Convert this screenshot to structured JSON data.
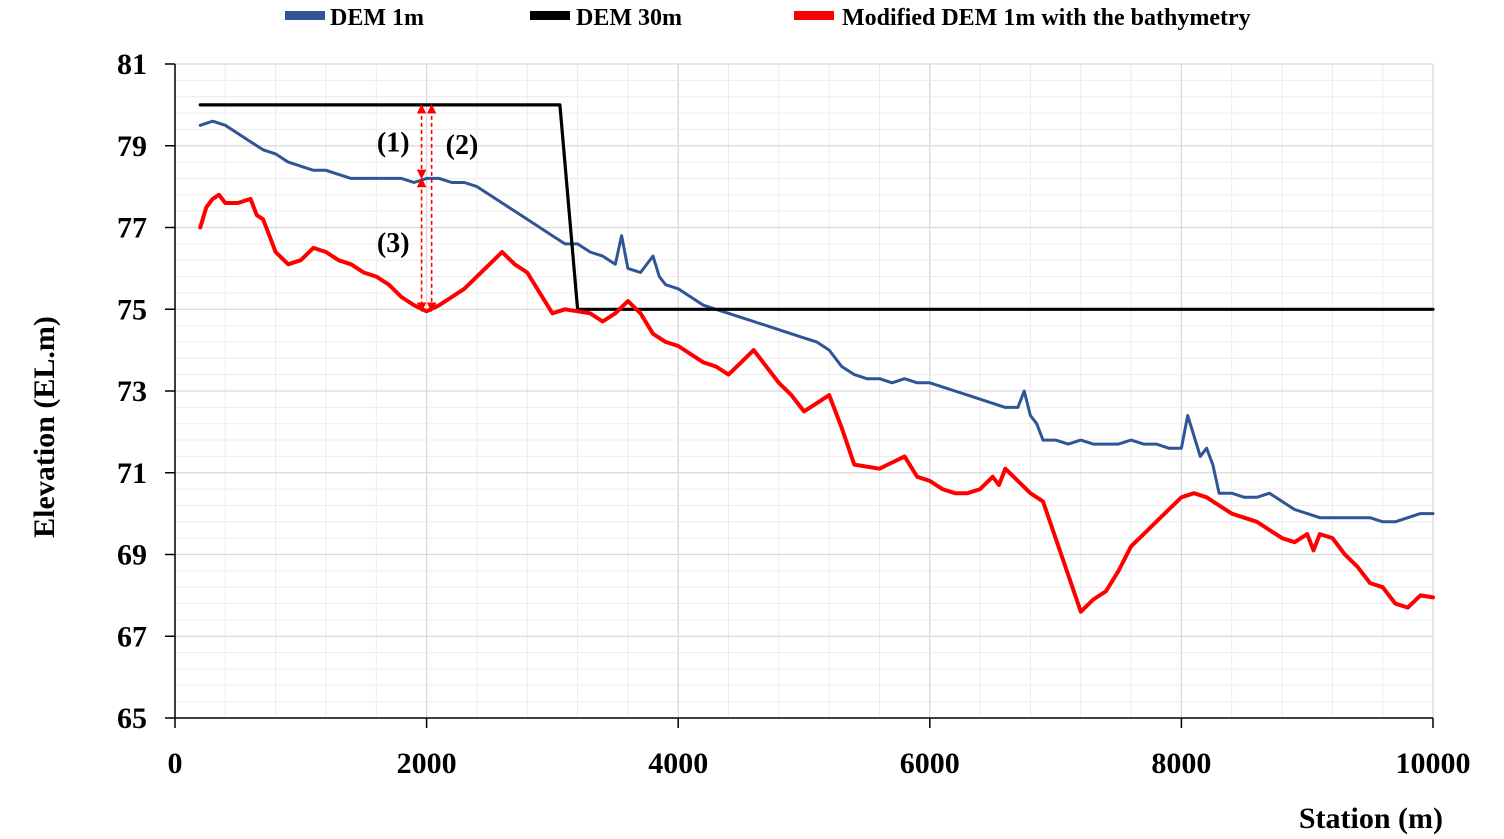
{
  "chart_data": {
    "type": "line",
    "title": "",
    "xlabel": "Station (m)",
    "ylabel": "Elevation (EL.m)",
    "xlim": [
      0,
      10000
    ],
    "ylim": [
      65,
      81
    ],
    "xticks": [
      0,
      2000,
      4000,
      6000,
      8000,
      10000
    ],
    "yticks": [
      65,
      67,
      69,
      71,
      73,
      75,
      77,
      79,
      81
    ],
    "grid": "major and minor gridlines",
    "legend_position": "top",
    "series": [
      {
        "name": "DEM 1m",
        "color": "#2F5597",
        "x": [
          200,
          300,
          400,
          500,
          600,
          700,
          800,
          900,
          1000,
          1100,
          1200,
          1300,
          1400,
          1500,
          1600,
          1700,
          1800,
          1900,
          2000,
          2100,
          2200,
          2300,
          2400,
          2500,
          2600,
          2700,
          2800,
          2900,
          3000,
          3100,
          3200,
          3300,
          3400,
          3500,
          3550,
          3600,
          3700,
          3800,
          3850,
          3900,
          4000,
          4100,
          4200,
          4300,
          4400,
          4500,
          4600,
          4700,
          4800,
          4900,
          5000,
          5100,
          5200,
          5300,
          5400,
          5500,
          5600,
          5700,
          5800,
          5900,
          6000,
          6100,
          6200,
          6300,
          6400,
          6500,
          6600,
          6700,
          6750,
          6800,
          6850,
          6900,
          7000,
          7100,
          7200,
          7300,
          7400,
          7500,
          7600,
          7700,
          7800,
          7900,
          8000,
          8050,
          8100,
          8150,
          8200,
          8250,
          8300,
          8350,
          8400,
          8500,
          8600,
          8700,
          8800,
          8900,
          9000,
          9100,
          9200,
          9300,
          9400,
          9500,
          9600,
          9700,
          9800,
          9900,
          10000
        ],
        "y": [
          79.5,
          79.6,
          79.5,
          79.3,
          79.1,
          78.9,
          78.8,
          78.6,
          78.5,
          78.4,
          78.4,
          78.3,
          78.2,
          78.2,
          78.2,
          78.2,
          78.2,
          78.1,
          78.2,
          78.2,
          78.1,
          78.1,
          78.0,
          77.8,
          77.6,
          77.4,
          77.2,
          77.0,
          76.8,
          76.6,
          76.6,
          76.4,
          76.3,
          76.1,
          76.8,
          76.0,
          75.9,
          76.3,
          75.8,
          75.6,
          75.5,
          75.3,
          75.1,
          75.0,
          74.9,
          74.8,
          74.7,
          74.6,
          74.5,
          74.4,
          74.3,
          74.2,
          74.0,
          73.6,
          73.4,
          73.3,
          73.3,
          73.2,
          73.3,
          73.2,
          73.2,
          73.1,
          73.0,
          72.9,
          72.8,
          72.7,
          72.6,
          72.6,
          73.0,
          72.4,
          72.2,
          71.8,
          71.8,
          71.7,
          71.8,
          71.7,
          71.7,
          71.7,
          71.8,
          71.7,
          71.7,
          71.6,
          71.6,
          72.4,
          71.9,
          71.4,
          71.6,
          71.2,
          70.5,
          70.5,
          70.5,
          70.4,
          70.4,
          70.5,
          70.3,
          70.1,
          70.0,
          69.9,
          69.9,
          69.9,
          69.9,
          69.9,
          69.8,
          69.8,
          69.9,
          70.0,
          70.0
        ]
      },
      {
        "name": "DEM 30m",
        "color": "#000000",
        "x": [
          200,
          3060,
          3200,
          10000
        ],
        "y": [
          80,
          80,
          75,
          75
        ]
      },
      {
        "name": "Modified DEM 1m with the bathymetry",
        "color": "#FF0000",
        "x": [
          200,
          250,
          300,
          350,
          400,
          500,
          600,
          650,
          700,
          750,
          800,
          900,
          1000,
          1100,
          1200,
          1300,
          1400,
          1500,
          1600,
          1700,
          1800,
          1900,
          2000,
          2100,
          2200,
          2300,
          2400,
          2500,
          2600,
          2700,
          2800,
          2900,
          3000,
          3100,
          3200,
          3300,
          3400,
          3500,
          3600,
          3700,
          3800,
          3900,
          4000,
          4100,
          4200,
          4300,
          4400,
          4500,
          4600,
          4700,
          4800,
          4900,
          5000,
          5100,
          5200,
          5300,
          5400,
          5600,
          5800,
          5900,
          6000,
          6100,
          6200,
          6300,
          6400,
          6500,
          6550,
          6600,
          6700,
          6800,
          6900,
          7000,
          7100,
          7200,
          7300,
          7400,
          7500,
          7600,
          7700,
          7800,
          7900,
          8000,
          8100,
          8200,
          8300,
          8400,
          8500,
          8600,
          8700,
          8800,
          8900,
          9000,
          9050,
          9100,
          9200,
          9300,
          9400,
          9500,
          9600,
          9700,
          9800,
          9900,
          10000
        ],
        "y": [
          77.0,
          77.5,
          77.7,
          77.8,
          77.6,
          77.6,
          77.7,
          77.3,
          77.2,
          76.8,
          76.4,
          76.1,
          76.2,
          76.5,
          76.4,
          76.2,
          76.1,
          75.9,
          75.8,
          75.6,
          75.3,
          75.1,
          74.95,
          75.1,
          75.3,
          75.5,
          75.8,
          76.1,
          76.4,
          76.1,
          75.9,
          75.4,
          74.9,
          75.0,
          74.95,
          74.9,
          74.7,
          74.9,
          75.2,
          74.9,
          74.4,
          74.2,
          74.1,
          73.9,
          73.7,
          73.6,
          73.4,
          73.7,
          74.0,
          73.6,
          73.2,
          72.9,
          72.5,
          72.7,
          72.9,
          72.1,
          71.2,
          71.1,
          71.4,
          70.9,
          70.8,
          70.6,
          70.5,
          70.5,
          70.6,
          70.9,
          70.7,
          71.1,
          70.8,
          70.5,
          70.3,
          69.4,
          68.5,
          67.6,
          67.9,
          68.1,
          68.6,
          69.2,
          69.5,
          69.8,
          70.1,
          70.4,
          70.5,
          70.4,
          70.2,
          70.0,
          69.9,
          69.8,
          69.6,
          69.4,
          69.3,
          69.5,
          69.1,
          69.5,
          69.4,
          69.0,
          68.7,
          68.3,
          68.2,
          67.8,
          67.7,
          68.0,
          67.95
        ]
      }
    ],
    "annotations": [
      {
        "label": "(1)",
        "x": 1960,
        "from": 80.0,
        "to": 78.2
      },
      {
        "label": "(2)",
        "x": 2040,
        "from": 80.0,
        "to": 74.95
      },
      {
        "label": "(3)",
        "x": 1960,
        "from": 78.2,
        "to": 74.95
      }
    ]
  }
}
